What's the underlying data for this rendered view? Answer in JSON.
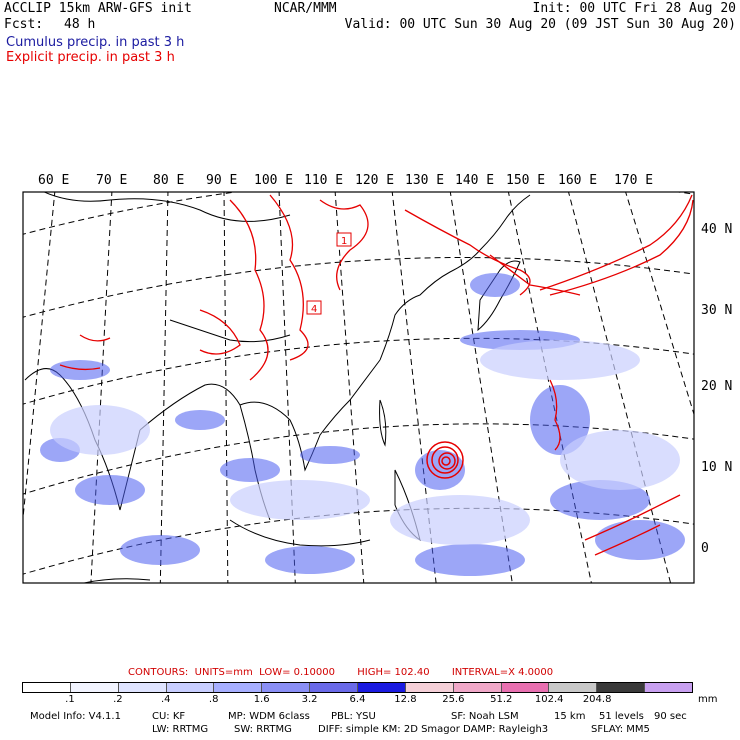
{
  "header": {
    "model_title": "ACCLIP 15km ARW-GFS init",
    "fcst_label": "Fcst:",
    "fcst_value": "48 h",
    "org": "NCAR/MMM",
    "init_time": "Init: 00 UTC Fri 28 Aug 20",
    "valid_time": "Valid: 00 UTC Sun 30 Aug 20 (09 JST Sun 30 Aug 20)",
    "legend_cumulus": "Cumulus precip. in past 3 h",
    "legend_explicit": "Explicit precip. in past 3 h"
  },
  "map": {
    "longitude_labels": [
      "60 E",
      "70 E",
      "80 E",
      "90 E",
      "100 E",
      "110 E",
      "120 E",
      "130 E",
      "140 E",
      "150 E",
      "160 E",
      "170 E"
    ],
    "latitude_labels": [
      "40 N",
      "30 N",
      "20 N",
      "10 N",
      "0"
    ],
    "contour_labels": [
      "1",
      "4"
    ],
    "colors": {
      "cumulus": "#2b3bd6",
      "explicit": "#e60000",
      "coast": "#000000"
    }
  },
  "contours": {
    "label": "CONTOURS:",
    "units": "UNITS=mm",
    "low": "LOW= 0.10000",
    "high": "HIGH= 102.40",
    "interval": "INTERVAL=X 4.0000"
  },
  "colorbar": {
    "tick_labels": [
      ".1",
      ".2",
      ".4",
      ".8",
      "1.6",
      "3.2",
      "6.4",
      "12.8",
      "25.6",
      "51.2",
      "102.4",
      "204.8"
    ],
    "unit": "mm",
    "colors": [
      "#ffffff",
      "#f2f4ff",
      "#dfe4ff",
      "#c8ceff",
      "#a7afff",
      "#8a8ff5",
      "#6a6ae8",
      "#1a1ae0",
      "#f5d0d8",
      "#f0a8c8",
      "#e870b0",
      "#c8c8c8",
      "#3a3a3a",
      "#c8a0f0"
    ]
  },
  "model_info": {
    "line1": [
      {
        "label": "Model Info: V4.1.1"
      },
      {
        "label": "CU: KF"
      },
      {
        "label": "MP: WDM 6class"
      },
      {
        "label": "PBL: YSU"
      },
      {
        "label": "SF: Noah LSM"
      },
      {
        "label": "15 km"
      },
      {
        "label": "51 levels"
      },
      {
        "label": "90 sec"
      }
    ],
    "line2": [
      {
        "label": "LW: RRTMG"
      },
      {
        "label": "SW: RRTMG"
      },
      {
        "label": "DIFF: simple KM: 2D Smagor DAMP: Rayleigh3"
      },
      {
        "label": "SFLAY: MM5"
      }
    ]
  }
}
